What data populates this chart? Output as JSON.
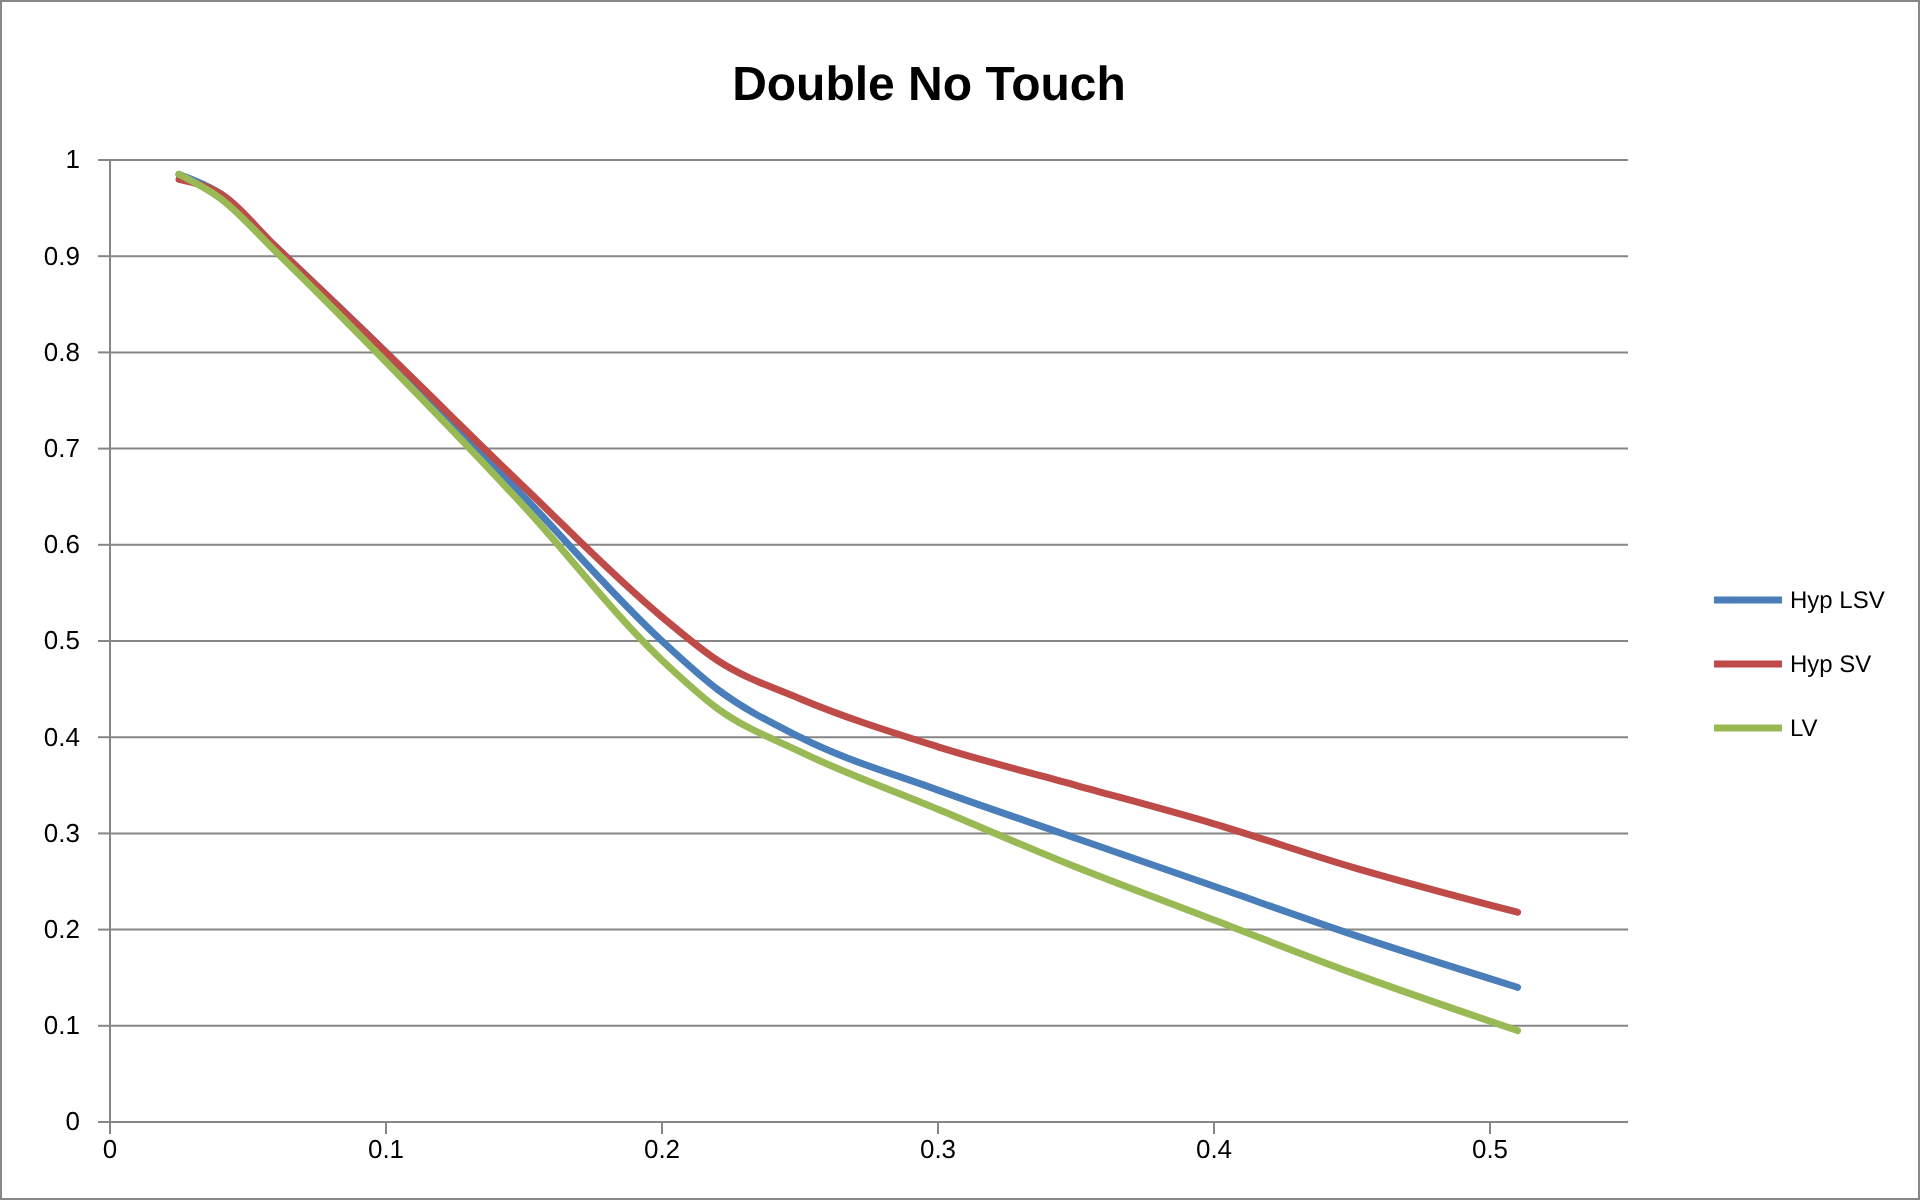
{
  "chart_data": {
    "type": "line",
    "title": "Double No Touch",
    "xlim": [
      0,
      0.55
    ],
    "xticks": [
      0,
      0.1,
      0.2,
      0.3,
      0.4,
      0.5
    ],
    "ylim": [
      0,
      1
    ],
    "yticks": [
      0,
      0.1,
      0.2,
      0.3,
      0.4,
      0.5,
      0.6,
      0.7,
      0.8,
      0.9,
      1
    ],
    "grid": "y",
    "legend": "right",
    "marker": "none",
    "line_style": "solid",
    "x": [
      0.025,
      0.04,
      0.06,
      0.1,
      0.15,
      0.2,
      0.22,
      0.25,
      0.3,
      0.35,
      0.4,
      0.45,
      0.51
    ],
    "series": [
      {
        "name": "Hyp LSV",
        "color": "#4a7ebb",
        "values": [
          0.985,
          0.965,
          0.91,
          0.8,
          0.65,
          0.5,
          0.45,
          0.4,
          0.345,
          0.295,
          0.245,
          0.195,
          0.14
        ]
      },
      {
        "name": "Hyp SV",
        "color": "#be4b48",
        "values": [
          0.98,
          0.965,
          0.91,
          0.8,
          0.66,
          0.525,
          0.48,
          0.44,
          0.39,
          0.35,
          0.31,
          0.265,
          0.218
        ]
      },
      {
        "name": "LV",
        "color": "#98b954",
        "values": [
          0.985,
          0.96,
          0.905,
          0.79,
          0.64,
          0.48,
          0.43,
          0.385,
          0.325,
          0.265,
          0.21,
          0.155,
          0.095
        ]
      }
    ]
  }
}
